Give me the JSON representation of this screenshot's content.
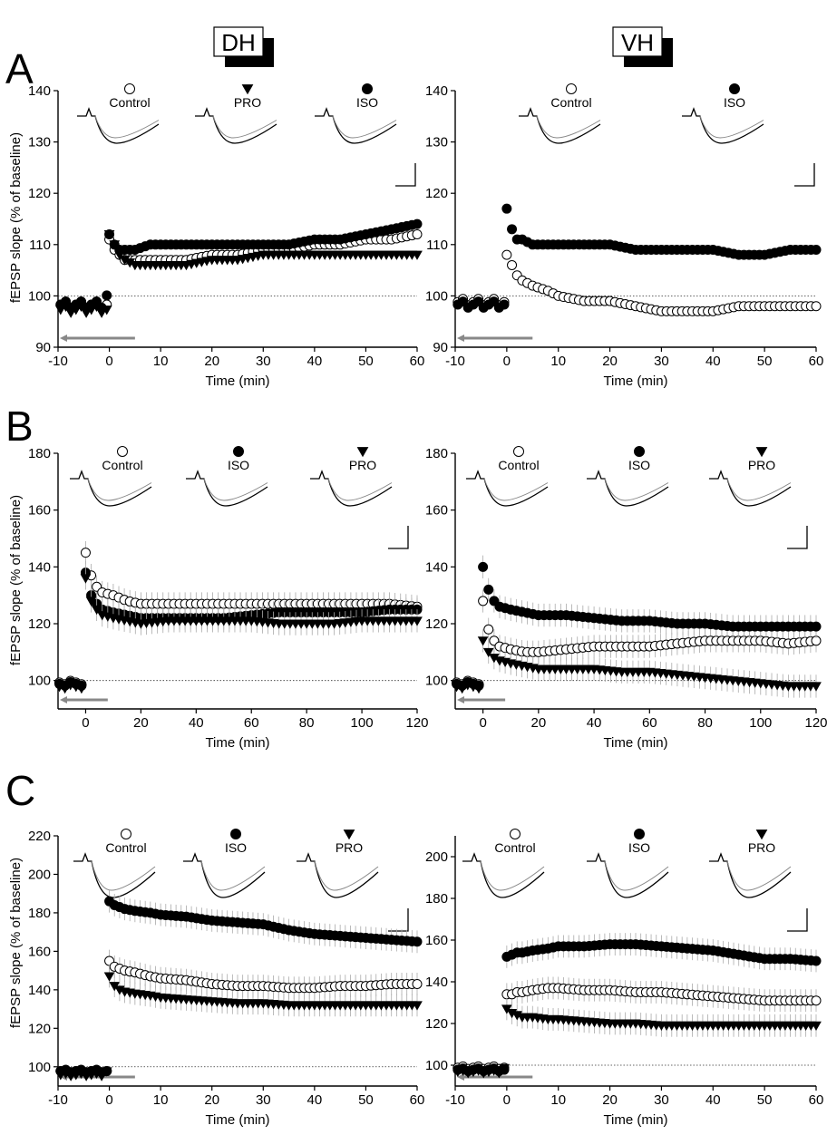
{
  "figure": {
    "column_headers": [
      "DH",
      "VH"
    ],
    "panel_letters": [
      "A",
      "B",
      "C"
    ],
    "ylabel": "fEPSP slope (% of baseline)",
    "xlabel": "Time (min)"
  },
  "chart_data": [
    {
      "id": "A-DH",
      "type": "scatter",
      "panel": "A",
      "region": "DH",
      "xlabel": "Time (min)",
      "ylabel": "fEPSP slope (% of baseline)",
      "xlim": [
        -10,
        60
      ],
      "ylim": [
        90,
        140
      ],
      "xticks": [
        -10,
        0,
        10,
        20,
        30,
        40,
        50,
        60
      ],
      "yticks": [
        90,
        100,
        110,
        120,
        130,
        140
      ],
      "legend": [
        "Control",
        "PRO",
        "ISO"
      ],
      "reference_line": 100,
      "series": [
        {
          "name": "Control",
          "marker": "open-circle",
          "baseline": 99.5,
          "x": [
            0,
            1,
            2,
            3,
            5,
            8,
            10,
            15,
            20,
            25,
            30,
            35,
            40,
            45,
            50,
            55,
            60
          ],
          "y": [
            111,
            109,
            108,
            107,
            107,
            107,
            107,
            107,
            108,
            108,
            109,
            109,
            110,
            110,
            111,
            111,
            112
          ]
        },
        {
          "name": "PRO",
          "marker": "filled-triangle-down",
          "baseline": 98.5,
          "x": [
            0,
            1,
            2,
            3,
            5,
            8,
            10,
            15,
            20,
            25,
            30,
            35,
            40,
            45,
            50,
            55,
            60
          ],
          "y": [
            112,
            110,
            108,
            107,
            106,
            106,
            106,
            106,
            107,
            107,
            108,
            108,
            108,
            108,
            108,
            108,
            108
          ]
        },
        {
          "name": "ISO",
          "marker": "filled-circle",
          "baseline": 99.5,
          "x": [
            0,
            1,
            2,
            3,
            5,
            8,
            10,
            15,
            20,
            25,
            30,
            35,
            40,
            45,
            50,
            55,
            60
          ],
          "y": [
            112,
            110,
            109,
            109,
            109,
            110,
            110,
            110,
            110,
            110,
            110,
            110,
            111,
            111,
            112,
            113,
            114
          ]
        }
      ]
    },
    {
      "id": "A-VH",
      "type": "scatter",
      "panel": "A",
      "region": "VH",
      "xlabel": "Time (min)",
      "ylabel": "",
      "xlim": [
        -10,
        60
      ],
      "ylim": [
        90,
        140
      ],
      "xticks": [
        -10,
        0,
        10,
        20,
        30,
        40,
        50,
        60
      ],
      "yticks": [
        90,
        100,
        110,
        120,
        130,
        140
      ],
      "legend": [
        "Control",
        "ISO"
      ],
      "reference_line": 100,
      "series": [
        {
          "name": "Control",
          "marker": "open-circle",
          "baseline": 100,
          "x": [
            0,
            1,
            2,
            3,
            5,
            8,
            10,
            15,
            20,
            25,
            30,
            35,
            40,
            45,
            50,
            55,
            60
          ],
          "y": [
            108,
            106,
            104,
            103,
            102,
            101,
            100,
            99,
            99,
            98,
            97,
            97,
            97,
            98,
            98,
            98,
            98
          ]
        },
        {
          "name": "ISO",
          "marker": "filled-circle",
          "baseline": 99.5,
          "x": [
            0,
            1,
            2,
            3,
            5,
            8,
            10,
            15,
            20,
            25,
            30,
            35,
            40,
            45,
            50,
            55,
            60
          ],
          "y": [
            117,
            113,
            111,
            111,
            110,
            110,
            110,
            110,
            110,
            109,
            109,
            109,
            109,
            108,
            108,
            109,
            109
          ]
        }
      ]
    },
    {
      "id": "B-DH",
      "type": "scatter",
      "panel": "B",
      "region": "DH",
      "xlabel": "Time (min)",
      "ylabel": "fEPSP slope (% of baseline)",
      "xlim": [
        -10,
        120
      ],
      "ylim": [
        90,
        180
      ],
      "xticks": [
        0,
        20,
        40,
        60,
        80,
        100,
        120
      ],
      "yticks": [
        100,
        120,
        140,
        160,
        180
      ],
      "legend": [
        "Control",
        "ISO",
        "PRO"
      ],
      "reference_line": 100,
      "series": [
        {
          "name": "Control",
          "marker": "open-circle",
          "baseline": 100.5,
          "x": [
            0,
            2,
            4,
            6,
            10,
            15,
            20,
            30,
            40,
            50,
            60,
            70,
            80,
            90,
            100,
            110,
            120
          ],
          "y": [
            145,
            137,
            133,
            131,
            130,
            128,
            127,
            127,
            127,
            127,
            127,
            127,
            127,
            127,
            127,
            127,
            126
          ]
        },
        {
          "name": "ISO",
          "marker": "filled-circle",
          "baseline": 100,
          "x": [
            0,
            2,
            4,
            6,
            10,
            15,
            20,
            30,
            40,
            50,
            60,
            70,
            80,
            90,
            100,
            110,
            120
          ],
          "y": [
            138,
            130,
            127,
            125,
            124,
            123,
            122,
            122,
            122,
            122,
            123,
            124,
            124,
            124,
            124,
            125,
            125
          ]
        },
        {
          "name": "PRO",
          "marker": "filled-triangle-down",
          "baseline": 99,
          "x": [
            0,
            2,
            4,
            6,
            10,
            15,
            20,
            30,
            40,
            50,
            60,
            70,
            80,
            90,
            100,
            110,
            120
          ],
          "y": [
            136,
            128,
            125,
            123,
            122,
            121,
            120,
            121,
            121,
            121,
            121,
            120,
            120,
            120,
            121,
            121,
            121
          ]
        }
      ]
    },
    {
      "id": "B-VH",
      "type": "scatter",
      "panel": "B",
      "region": "VH",
      "xlabel": "Time (min)",
      "ylabel": "",
      "xlim": [
        -10,
        120
      ],
      "ylim": [
        90,
        180
      ],
      "xticks": [
        0,
        20,
        40,
        60,
        80,
        100,
        120
      ],
      "yticks": [
        100,
        120,
        140,
        160,
        180
      ],
      "legend": [
        "Control",
        "ISO",
        "PRO"
      ],
      "reference_line": 100,
      "series": [
        {
          "name": "Control",
          "marker": "open-circle",
          "baseline": 100.5,
          "x": [
            0,
            2,
            4,
            6,
            10,
            15,
            20,
            30,
            40,
            50,
            60,
            70,
            80,
            90,
            100,
            110,
            120
          ],
          "y": [
            128,
            118,
            114,
            112,
            111,
            110,
            110,
            111,
            112,
            112,
            112,
            113,
            114,
            114,
            114,
            113,
            114
          ]
        },
        {
          "name": "ISO",
          "marker": "filled-circle",
          "baseline": 100,
          "x": [
            0,
            2,
            4,
            6,
            10,
            15,
            20,
            30,
            40,
            50,
            60,
            70,
            80,
            90,
            100,
            110,
            120
          ],
          "y": [
            140,
            132,
            128,
            126,
            125,
            124,
            123,
            123,
            122,
            121,
            121,
            120,
            120,
            119,
            119,
            119,
            119
          ]
        },
        {
          "name": "PRO",
          "marker": "filled-triangle-down",
          "baseline": 99,
          "x": [
            0,
            2,
            4,
            6,
            10,
            15,
            20,
            30,
            40,
            50,
            60,
            70,
            80,
            90,
            100,
            110,
            120
          ],
          "y": [
            114,
            110,
            108,
            107,
            106,
            105,
            104,
            104,
            104,
            103,
            103,
            102,
            101,
            100,
            99,
            98,
            98
          ]
        }
      ]
    },
    {
      "id": "C-DH",
      "type": "scatter",
      "panel": "C",
      "region": "DH",
      "xlabel": "Time (min)",
      "ylabel": "fEPSP slope (% of baseline)",
      "xlim": [
        -10,
        60
      ],
      "ylim": [
        90,
        220
      ],
      "xticks": [
        -10,
        0,
        10,
        20,
        30,
        40,
        50,
        60
      ],
      "yticks": [
        100,
        120,
        140,
        160,
        180,
        200,
        220
      ],
      "legend": [
        "Control",
        "ISO",
        "PRO"
      ],
      "reference_line": 100,
      "series": [
        {
          "name": "Control",
          "marker": "open-circle",
          "baseline": 99,
          "x": [
            0,
            1,
            2,
            3,
            5,
            8,
            10,
            15,
            20,
            25,
            30,
            35,
            40,
            45,
            50,
            55,
            60
          ],
          "y": [
            155,
            152,
            151,
            150,
            149,
            147,
            146,
            145,
            143,
            142,
            142,
            141,
            141,
            142,
            142,
            143,
            143
          ]
        },
        {
          "name": "ISO",
          "marker": "filled-circle",
          "baseline": 99,
          "x": [
            0,
            1,
            2,
            3,
            5,
            8,
            10,
            15,
            20,
            25,
            30,
            35,
            40,
            45,
            50,
            55,
            60
          ],
          "y": [
            186,
            184,
            183,
            182,
            181,
            180,
            179,
            178,
            176,
            175,
            174,
            171,
            169,
            168,
            167,
            166,
            165
          ]
        },
        {
          "name": "PRO",
          "marker": "filled-triangle-down",
          "baseline": 97,
          "x": [
            0,
            1,
            2,
            3,
            5,
            8,
            10,
            15,
            20,
            25,
            30,
            35,
            40,
            45,
            50,
            55,
            60
          ],
          "y": [
            147,
            142,
            140,
            139,
            138,
            137,
            136,
            135,
            134,
            133,
            133,
            132,
            132,
            132,
            132,
            132,
            132
          ]
        }
      ]
    },
    {
      "id": "C-VH",
      "type": "scatter",
      "panel": "C",
      "region": "VH",
      "xlabel": "Time (min)",
      "ylabel": "",
      "xlim": [
        -10,
        60
      ],
      "ylim": [
        90,
        210
      ],
      "xticks": [
        -10,
        0,
        10,
        20,
        30,
        40,
        50,
        60
      ],
      "yticks": [
        100,
        120,
        140,
        160,
        180,
        200
      ],
      "legend": [
        "Control",
        "ISO",
        "PRO"
      ],
      "reference_line": 100,
      "series": [
        {
          "name": "Control",
          "marker": "open-circle",
          "baseline": 100,
          "x": [
            0,
            1,
            2,
            3,
            5,
            8,
            10,
            15,
            20,
            25,
            30,
            35,
            40,
            45,
            50,
            55,
            60
          ],
          "y": [
            134,
            134,
            135,
            135,
            136,
            137,
            137,
            136,
            136,
            135,
            135,
            134,
            133,
            132,
            131,
            131,
            131
          ]
        },
        {
          "name": "ISO",
          "marker": "filled-circle",
          "baseline": 99,
          "x": [
            0,
            1,
            2,
            3,
            5,
            8,
            10,
            15,
            20,
            25,
            30,
            35,
            40,
            45,
            50,
            55,
            60
          ],
          "y": [
            152,
            153,
            154,
            154,
            155,
            156,
            157,
            157,
            158,
            158,
            157,
            156,
            155,
            153,
            151,
            151,
            150
          ]
        },
        {
          "name": "PRO",
          "marker": "filled-triangle-down",
          "baseline": 98,
          "x": [
            0,
            1,
            2,
            3,
            5,
            8,
            10,
            15,
            20,
            25,
            30,
            35,
            40,
            45,
            50,
            55,
            60
          ],
          "y": [
            127,
            125,
            124,
            123,
            123,
            122,
            122,
            121,
            120,
            120,
            119,
            119,
            119,
            119,
            119,
            119,
            119
          ]
        }
      ]
    }
  ]
}
